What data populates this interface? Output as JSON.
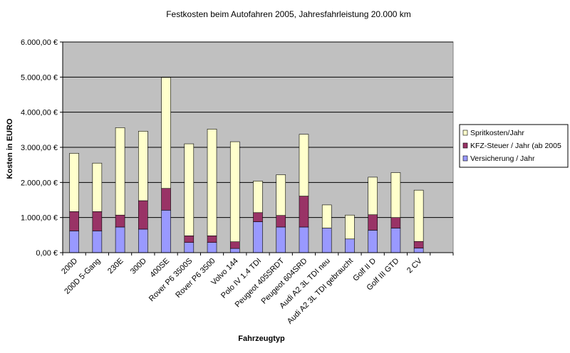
{
  "chart_data": {
    "type": "bar",
    "stacked": true,
    "title": "Festkosten beim Autofahren 2005, Jahresfahrleistung 20.000 km",
    "xlabel": "Fahrzeugtyp",
    "ylabel": "Kosten in EURO",
    "ylim": [
      0,
      6000
    ],
    "yticks": [
      0,
      1000,
      2000,
      3000,
      4000,
      5000,
      6000
    ],
    "ytick_labels": [
      "0,00 €",
      "1.000,00 €",
      "2.000,00 €",
      "3.000,00 €",
      "4.000,00 €",
      "5.000,00 €",
      "6.000,00 €"
    ],
    "grid": true,
    "legend_position": "right",
    "plot_background": "#c0c0c0",
    "categories": [
      "200D",
      "200D 5-Gang",
      "230E",
      "300D",
      "400SE",
      "Rover P6 3500S",
      "Rover P6 3500",
      "Volvo 144",
      "Polo IV 1.4 TDI",
      "Peugeot 405SRDT",
      "Peugeot 604SRD",
      "Audi A2 3L TDI neu",
      "Audi A2 3L TDI gebraucht",
      "Golf II D",
      "Golf III GTD",
      "2 CV"
    ],
    "series": [
      {
        "name": "Versicherung / Jahr",
        "color": "#9999ff",
        "values": [
          620,
          620,
          730,
          670,
          1210,
          290,
          290,
          120,
          880,
          730,
          730,
          700,
          390,
          640,
          700,
          130
        ]
      },
      {
        "name": "KFZ-Steuer / Jahr (ab 2005",
        "color": "#993366",
        "values": [
          550,
          550,
          340,
          810,
          620,
          190,
          190,
          190,
          260,
          330,
          880,
          0,
          0,
          440,
          300,
          190
        ]
      },
      {
        "name": "Spritkosten/Jahr",
        "color": "#ffffcc",
        "values": [
          1660,
          1380,
          2490,
          1980,
          3160,
          2620,
          3040,
          2850,
          900,
          1160,
          1760,
          660,
          680,
          1070,
          1280,
          1460
        ]
      }
    ],
    "legend_order": [
      "Spritkosten/Jahr",
      "KFZ-Steuer / Jahr (ab 2005",
      "Versicherung / Jahr"
    ]
  }
}
